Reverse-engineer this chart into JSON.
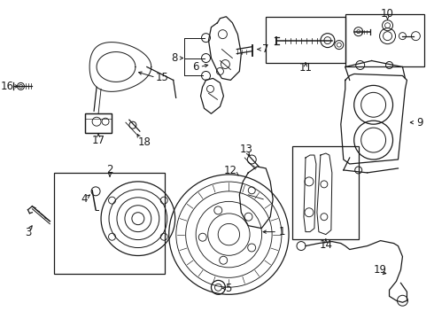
{
  "bg_color": "#ffffff",
  "fig_width": 4.9,
  "fig_height": 3.6,
  "dpi": 100,
  "line_color": "#1a1a1a",
  "label_fontsize": 8.5,
  "lw": 0.9
}
